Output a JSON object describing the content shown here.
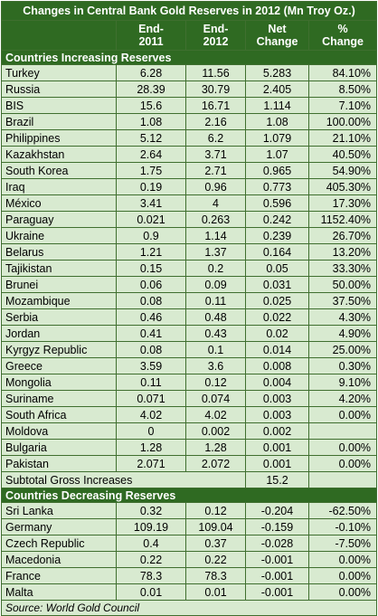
{
  "title": "Changes in Central Bank Gold Reserves in 2012 (Mn Troy Oz.)",
  "columns": {
    "end2011": [
      "End-",
      "2011"
    ],
    "end2012": [
      "End-",
      "2012"
    ],
    "net_change": [
      "Net",
      "Change"
    ],
    "pct_change": [
      "%",
      "Change"
    ]
  },
  "sections": [
    {
      "label": "Countries Increasing Reserves",
      "rows": [
        {
          "country": "Turkey",
          "end2011": "6.28",
          "end2012": "11.56",
          "net": "5.283",
          "pct": "84.10%"
        },
        {
          "country": "Russia",
          "end2011": "28.39",
          "end2012": "30.79",
          "net": "2.405",
          "pct": "8.50%"
        },
        {
          "country": "BIS",
          "end2011": "15.6",
          "end2012": "16.71",
          "net": "1.114",
          "pct": "7.10%"
        },
        {
          "country": "Brazil",
          "end2011": "1.08",
          "end2012": "2.16",
          "net": "1.08",
          "pct": "100.00%"
        },
        {
          "country": "Philippines",
          "end2011": "5.12",
          "end2012": "6.2",
          "net": "1.079",
          "pct": "21.10%"
        },
        {
          "country": "Kazakhstan",
          "end2011": "2.64",
          "end2012": "3.71",
          "net": "1.07",
          "pct": "40.50%"
        },
        {
          "country": "South Korea",
          "end2011": "1.75",
          "end2012": "2.71",
          "net": "0.965",
          "pct": "54.90%"
        },
        {
          "country": "Iraq",
          "end2011": "0.19",
          "end2012": "0.96",
          "net": "0.773",
          "pct": "405.30%"
        },
        {
          "country": "México",
          "end2011": "3.41",
          "end2012": "4",
          "net": "0.596",
          "pct": "17.30%"
        },
        {
          "country": "Paraguay",
          "end2011": "0.021",
          "end2012": "0.263",
          "net": "0.242",
          "pct": "1152.40%"
        },
        {
          "country": "Ukraine",
          "end2011": "0.9",
          "end2012": "1.14",
          "net": "0.239",
          "pct": "26.70%"
        },
        {
          "country": "Belarus",
          "end2011": "1.21",
          "end2012": "1.37",
          "net": "0.164",
          "pct": "13.20%"
        },
        {
          "country": "Tajikistan",
          "end2011": "0.15",
          "end2012": "0.2",
          "net": "0.05",
          "pct": "33.30%"
        },
        {
          "country": "Brunei",
          "end2011": "0.06",
          "end2012": "0.09",
          "net": "0.031",
          "pct": "50.00%"
        },
        {
          "country": "Mozambique",
          "end2011": "0.08",
          "end2012": "0.11",
          "net": "0.025",
          "pct": "37.50%"
        },
        {
          "country": "Serbia",
          "end2011": "0.46",
          "end2012": "0.48",
          "net": "0.022",
          "pct": "4.30%"
        },
        {
          "country": "Jordan",
          "end2011": "0.41",
          "end2012": "0.43",
          "net": "0.02",
          "pct": "4.90%"
        },
        {
          "country": "Kyrgyz Republic",
          "end2011": "0.08",
          "end2012": "0.1",
          "net": "0.014",
          "pct": "25.00%"
        },
        {
          "country": "Greece",
          "end2011": "3.59",
          "end2012": "3.6",
          "net": "0.008",
          "pct": "0.30%"
        },
        {
          "country": "Mongolia",
          "end2011": "0.11",
          "end2012": "0.12",
          "net": "0.004",
          "pct": "9.10%"
        },
        {
          "country": "Suriname",
          "end2011": "0.071",
          "end2012": "0.074",
          "net": "0.003",
          "pct": "4.20%"
        },
        {
          "country": "South Africa",
          "end2011": "4.02",
          "end2012": "4.02",
          "net": "0.003",
          "pct": "0.00%"
        },
        {
          "country": "Moldova",
          "end2011": "0",
          "end2012": "0.002",
          "net": "0.002",
          "pct": ""
        },
        {
          "country": "Bulgaria",
          "end2011": "1.28",
          "end2012": "1.28",
          "net": "0.001",
          "pct": "0.00%"
        },
        {
          "country": "Pakistan",
          "end2011": "2.071",
          "end2012": "2.072",
          "net": "0.001",
          "pct": "0.00%"
        }
      ],
      "subtotal": {
        "label": "Subtotal Gross Increases",
        "net": "15.2"
      }
    },
    {
      "label": "Countries Decreasing Reserves",
      "rows": [
        {
          "country": "Sri Lanka",
          "end2011": "0.32",
          "end2012": "0.12",
          "net": "-0.204",
          "pct": "-62.50%"
        },
        {
          "country": "Germany",
          "end2011": "109.19",
          "end2012": "109.04",
          "net": "-0.159",
          "pct": "-0.10%"
        },
        {
          "country": "Czech Republic",
          "end2011": "0.4",
          "end2012": "0.37",
          "net": "-0.028",
          "pct": "-7.50%"
        },
        {
          "country": "Macedonia",
          "end2011": "0.22",
          "end2012": "0.22",
          "net": "-0.001",
          "pct": "0.00%"
        },
        {
          "country": "France",
          "end2011": "78.3",
          "end2012": "78.3",
          "net": "-0.001",
          "pct": "0.00%"
        },
        {
          "country": "Malta",
          "end2011": "0.01",
          "end2012": "0.01",
          "net": "-0.001",
          "pct": "0.00%"
        }
      ]
    }
  ],
  "source": "Source: World Gold Council",
  "colors": {
    "header_bg": "#2f6a22",
    "header_text": "#ffffff",
    "row_bg": "#d8ead0",
    "border": "#3f6f2f"
  }
}
